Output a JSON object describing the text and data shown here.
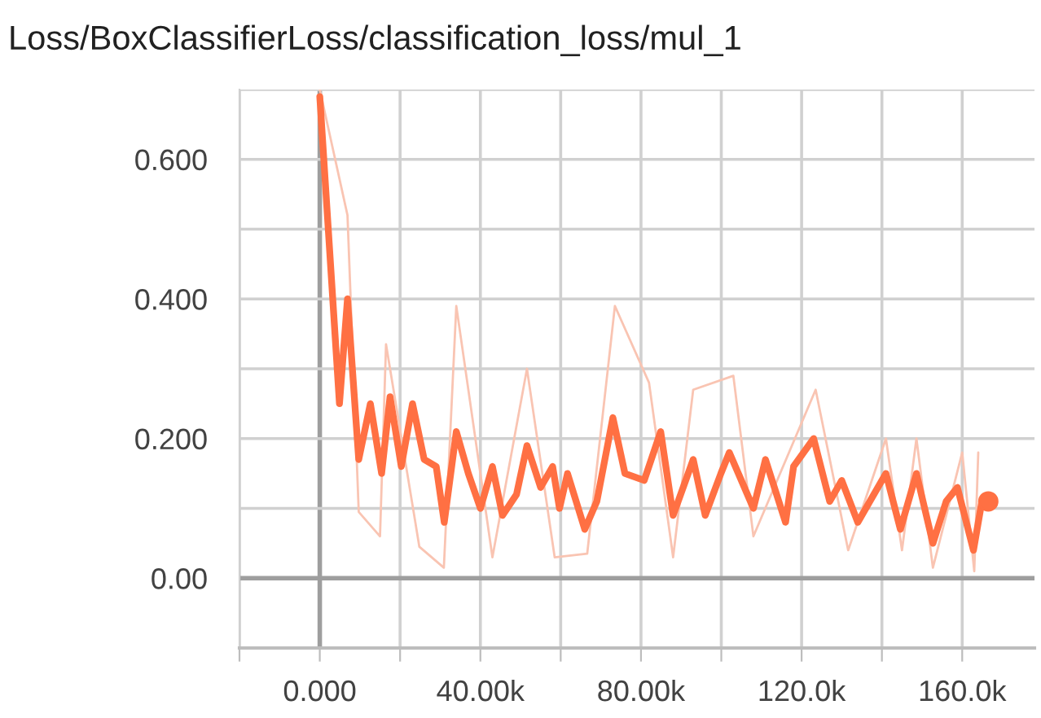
{
  "chart_data": {
    "type": "line",
    "title": "Loss/BoxClassifierLoss/classification_loss/mul_1",
    "series": [
      {
        "color": "#f9c4b2",
        "x": [
          0,
          6900,
          9700,
          15000,
          16500,
          24800,
          30900,
          34000,
          43000,
          51600,
          58500,
          66600,
          73500,
          82000,
          88000,
          93000,
          103000,
          108000,
          123500,
          131600,
          141000,
          145000,
          148600,
          152700,
          160000,
          163000,
          164000
        ],
        "values": [
          0.7,
          0.52,
          0.095,
          0.06,
          0.335,
          0.045,
          0.015,
          0.39,
          0.03,
          0.3,
          0.03,
          0.035,
          0.39,
          0.28,
          0.03,
          0.27,
          0.29,
          0.06,
          0.27,
          0.04,
          0.2,
          0.04,
          0.2,
          0.015,
          0.18,
          0.01,
          0.18
        ]
      },
      {
        "color": "#ff7043",
        "x": [
          0,
          4900,
          6900,
          9700,
          12600,
          15400,
          17500,
          20300,
          23100,
          26000,
          29000,
          31000,
          34000,
          37000,
          40000,
          43000,
          45500,
          49000,
          51600,
          55000,
          58000,
          59700,
          61700,
          66000,
          69000,
          73000,
          76000,
          80800,
          84900,
          88000,
          93000,
          96000,
          99900,
          102000,
          108000,
          111000,
          116000,
          118000,
          123000,
          127000,
          130000,
          134000,
          137000,
          141000,
          144600,
          148600,
          152700,
          156000,
          158800,
          162800,
          164900,
          166500
        ],
        "values": [
          0.69,
          0.25,
          0.4,
          0.17,
          0.25,
          0.15,
          0.26,
          0.16,
          0.25,
          0.17,
          0.16,
          0.08,
          0.21,
          0.15,
          0.1,
          0.16,
          0.09,
          0.12,
          0.19,
          0.13,
          0.16,
          0.1,
          0.15,
          0.07,
          0.11,
          0.23,
          0.15,
          0.14,
          0.21,
          0.09,
          0.17,
          0.09,
          0.15,
          0.18,
          0.1,
          0.17,
          0.08,
          0.16,
          0.2,
          0.11,
          0.14,
          0.08,
          0.11,
          0.15,
          0.07,
          0.15,
          0.05,
          0.11,
          0.13,
          0.04,
          0.11,
          0.11
        ]
      }
    ],
    "xlim": [
      -20000,
      178000
    ],
    "xticks": [
      {
        "value": -20000,
        "label": null
      },
      {
        "value": 0,
        "label": "0.000"
      },
      {
        "value": 20000,
        "label": null
      },
      {
        "value": 40000,
        "label": "40.00k"
      },
      {
        "value": 60000,
        "label": null
      },
      {
        "value": 80000,
        "label": "80.00k"
      },
      {
        "value": 100000,
        "label": null
      },
      {
        "value": 120000,
        "label": "120.0k"
      },
      {
        "value": 140000,
        "label": null
      },
      {
        "value": 160000,
        "label": "160.0k"
      }
    ],
    "ylim": [
      -0.1,
      0.7
    ],
    "yticks": [
      {
        "value": 0,
        "label": "0.00"
      },
      {
        "value": 0.1,
        "label": null
      },
      {
        "value": 0.2,
        "label": "0.200"
      },
      {
        "value": 0.3,
        "label": null
      },
      {
        "value": 0.4,
        "label": "0.400"
      },
      {
        "value": 0.5,
        "label": null
      },
      {
        "value": 0.6,
        "label": "0.600"
      },
      {
        "value": 0.7,
        "label": null
      }
    ],
    "grid": true,
    "legend": false
  }
}
